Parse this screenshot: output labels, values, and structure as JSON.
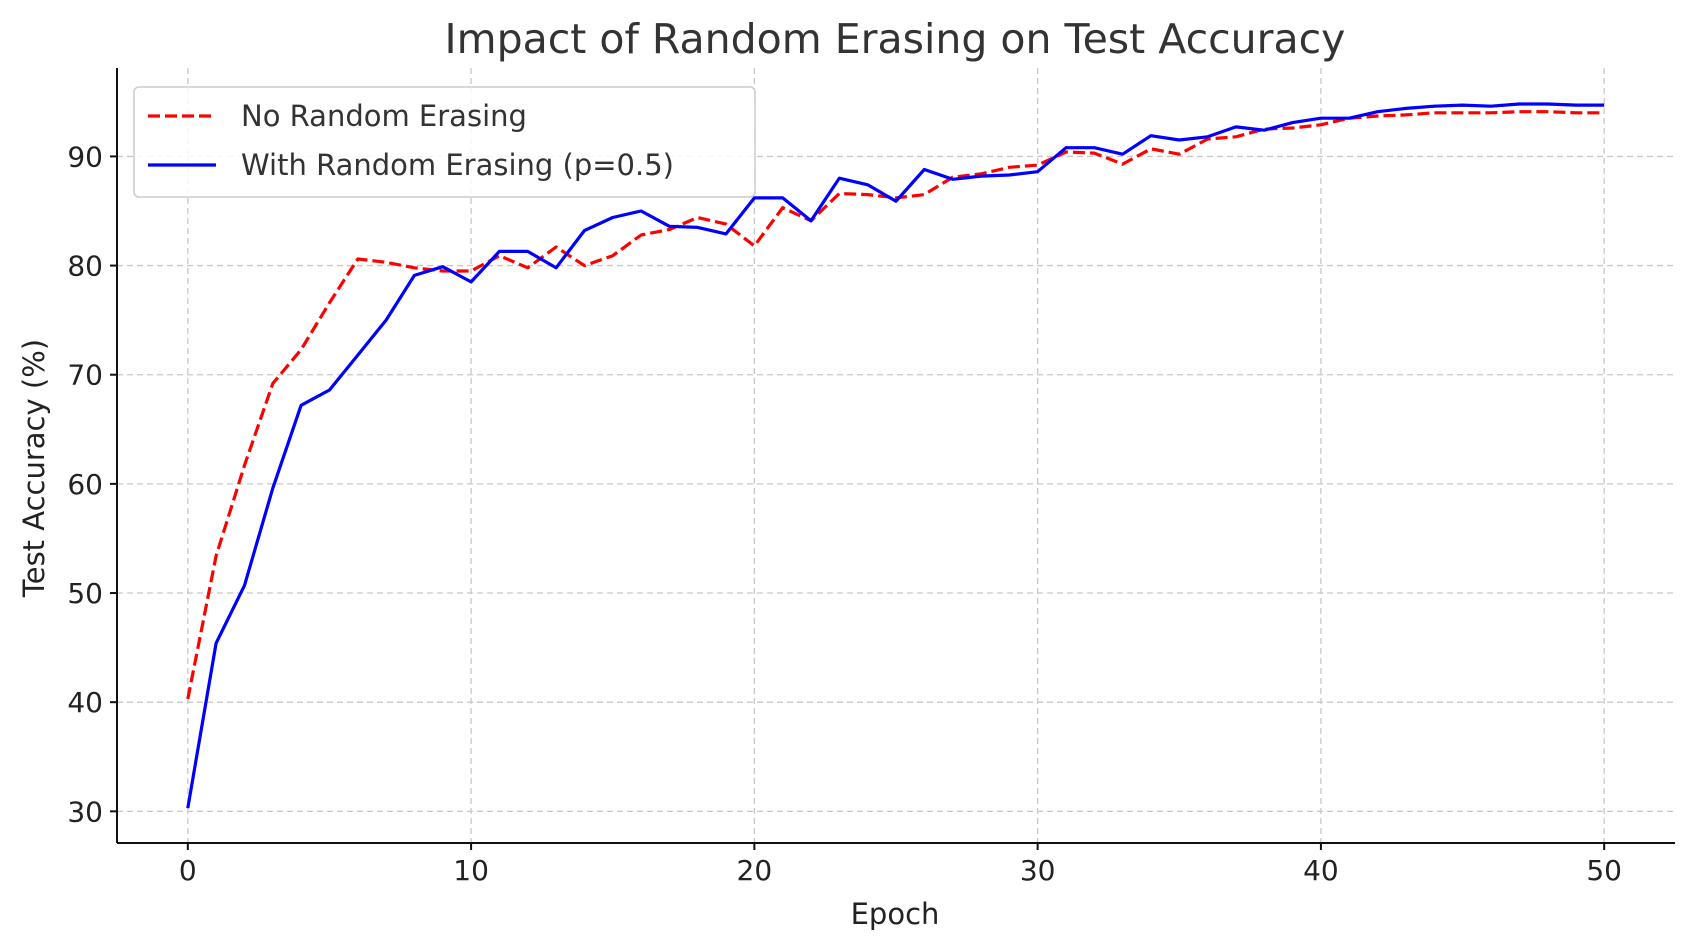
{
  "chart_data": {
    "type": "line",
    "title": "Impact of Random Erasing on Test Accuracy",
    "xlabel": "Epoch",
    "ylabel": "Test Accuracy (%)",
    "xlim": [
      -2.5,
      52.5
    ],
    "ylim": [
      27.1,
      98.1
    ],
    "xticks": [
      0,
      10,
      20,
      30,
      40,
      50
    ],
    "yticks": [
      30,
      40,
      50,
      60,
      70,
      80,
      90
    ],
    "grid": true,
    "legend_position": "top-left",
    "x": [
      0,
      1,
      2,
      3,
      4,
      5,
      6,
      7,
      8,
      9,
      10,
      11,
      12,
      13,
      14,
      15,
      16,
      17,
      18,
      19,
      20,
      21,
      22,
      23,
      24,
      25,
      26,
      27,
      28,
      29,
      30,
      31,
      32,
      33,
      34,
      35,
      36,
      37,
      38,
      39,
      40,
      41,
      42,
      43,
      44,
      45,
      46,
      47,
      48,
      49,
      50
    ],
    "series": [
      {
        "name": "No Random Erasing",
        "color": "#ff0000",
        "dash": "dashed",
        "values": [
          40.3,
          53.4,
          61.7,
          69.2,
          72.3,
          76.6,
          80.6,
          80.3,
          79.8,
          79.5,
          79.5,
          80.9,
          79.8,
          81.7,
          80.0,
          80.9,
          82.8,
          83.3,
          84.4,
          83.8,
          81.8,
          85.3,
          84.1,
          86.6,
          86.5,
          86.2,
          86.5,
          88.1,
          88.4,
          89.0,
          89.2,
          90.4,
          90.3,
          89.3,
          90.7,
          90.2,
          91.6,
          91.8,
          92.5,
          92.6,
          92.9,
          93.5,
          93.7,
          93.8,
          94.0,
          94.0,
          94.0,
          94.1,
          94.1,
          94.0,
          94.0
        ]
      },
      {
        "name": "With Random Erasing (p=0.5)",
        "color": "#0000ff",
        "dash": "solid",
        "values": [
          30.3,
          45.4,
          50.7,
          59.6,
          67.2,
          68.6,
          71.8,
          75.0,
          79.1,
          79.9,
          78.5,
          81.3,
          81.3,
          79.8,
          83.2,
          84.4,
          85.0,
          83.6,
          83.5,
          82.9,
          86.2,
          86.2,
          84.1,
          88.0,
          87.4,
          85.9,
          88.8,
          87.9,
          88.2,
          88.3,
          88.6,
          90.8,
          90.8,
          90.2,
          91.9,
          91.5,
          91.8,
          92.7,
          92.4,
          93.1,
          93.5,
          93.5,
          94.1,
          94.4,
          94.6,
          94.7,
          94.6,
          94.8,
          94.8,
          94.7,
          94.7
        ]
      }
    ]
  }
}
